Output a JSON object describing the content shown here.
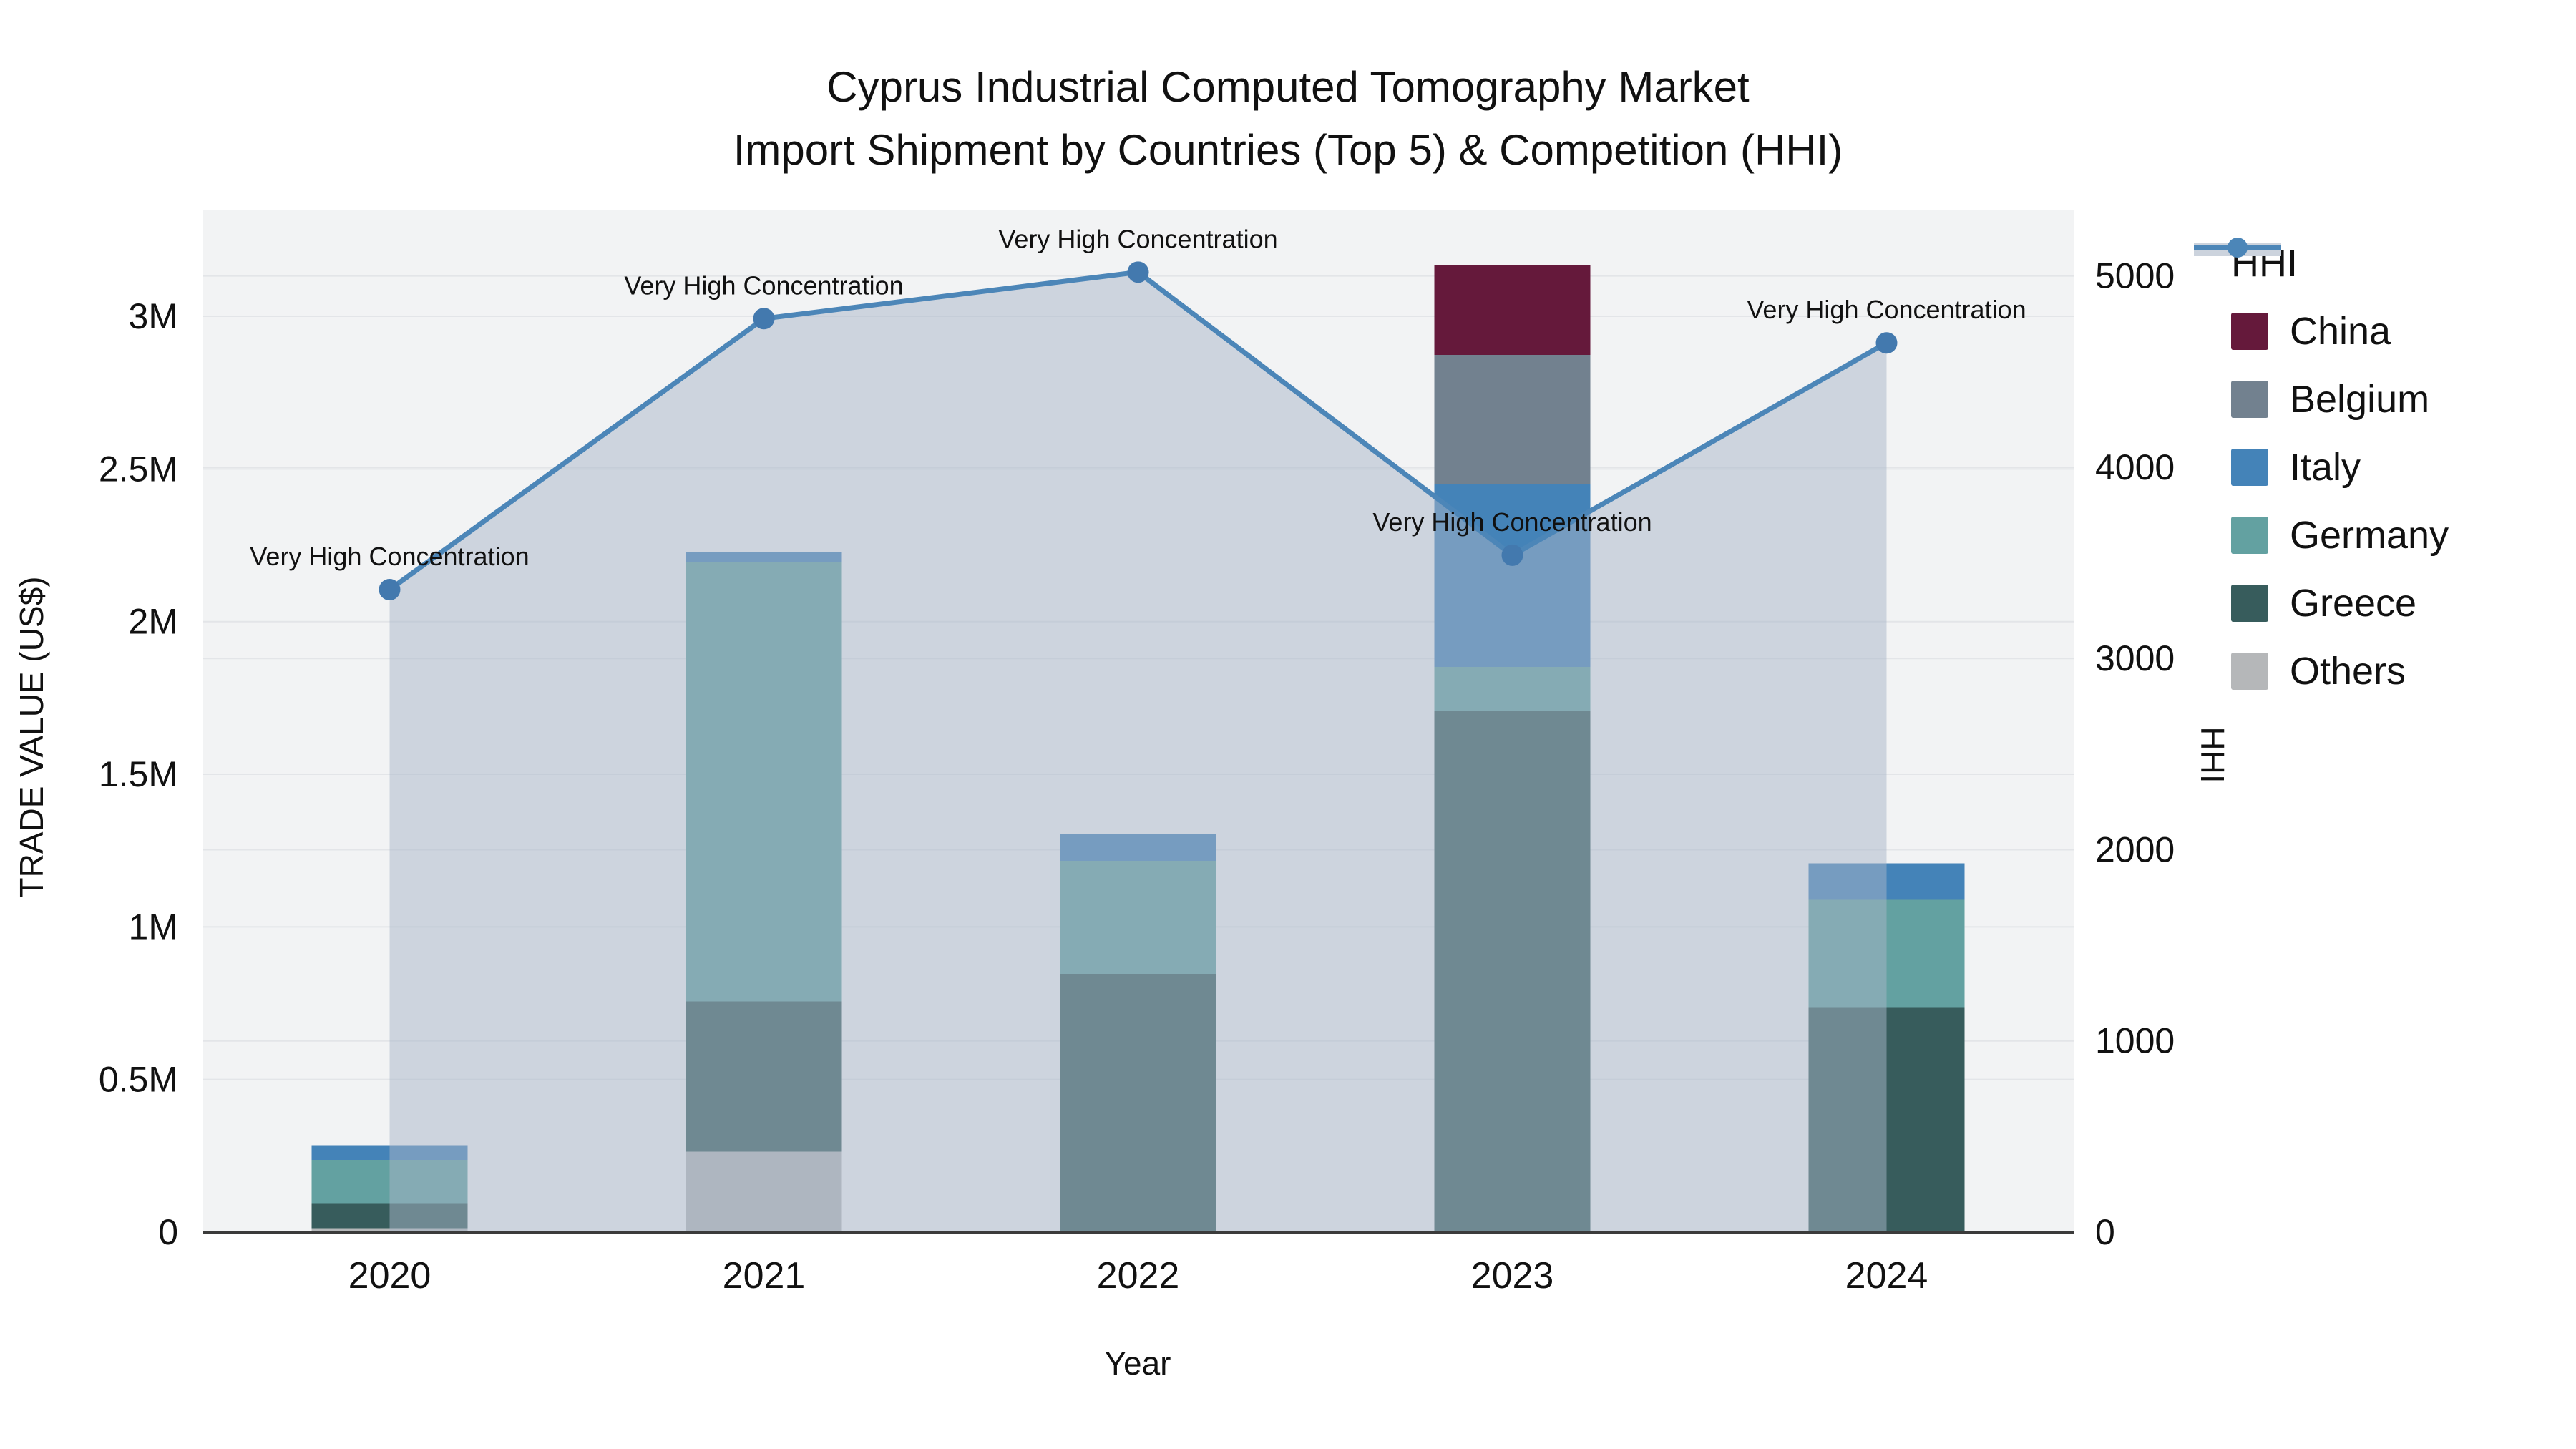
{
  "title": {
    "line1": "Cyprus Industrial Computed Tomography Market",
    "line2": "Import Shipment by Countries (Top 5) & Competition (HHI)"
  },
  "axes": {
    "x_title": "Year",
    "y_title": "TRADE VALUE (US$)",
    "y2_title": "HHI"
  },
  "annotation_label": "Very High Concentration",
  "colors": {
    "plot_background": "#f2f3f4",
    "gridline": "#e3e5e8",
    "axis_line": "#3b3b3b",
    "hhi_line": "#4c86b8",
    "hhi_marker": "#4379ae",
    "hhi_area_fill": "rgba(168,181,199,0.5)",
    "legend_band": "#ccd3dd",
    "china": "#65193b",
    "belgium": "#72818f",
    "italy": "#4483b8",
    "germany": "#63a1a1",
    "greece": "#375c5c",
    "others": "#b5b7b9"
  },
  "legend": {
    "items": [
      {
        "label": "HHI",
        "type": "line",
        "color": "#4c86b8"
      },
      {
        "label": "China",
        "type": "swatch",
        "color": "#65193b"
      },
      {
        "label": "Belgium",
        "type": "swatch",
        "color": "#72818f"
      },
      {
        "label": "Italy",
        "type": "swatch",
        "color": "#4483b8"
      },
      {
        "label": "Germany",
        "type": "swatch",
        "color": "#63a1a1"
      },
      {
        "label": "Greece",
        "type": "swatch",
        "color": "#375c5c"
      },
      {
        "label": "Others",
        "type": "swatch",
        "color": "#b5b7b9"
      }
    ]
  },
  "chart_data": {
    "type": "bar",
    "subtype": "stacked-bars-with-line",
    "title": "Cyprus Industrial Computed Tomography Market — Import Shipment by Countries (Top 5) & Competition (HHI)",
    "xlabel": "Year",
    "ylabel": "TRADE VALUE (US$)",
    "y2label": "HHI",
    "categories": [
      "2020",
      "2021",
      "2022",
      "2023",
      "2024"
    ],
    "series": [
      {
        "name": "Others",
        "color": "#b5b7b9",
        "values": [
          13000,
          264000,
          0,
          0,
          0
        ]
      },
      {
        "name": "Greece",
        "color": "#375c5c",
        "values": [
          82000,
          492000,
          846000,
          1708000,
          737000
        ]
      },
      {
        "name": "Germany",
        "color": "#63a1a1",
        "values": [
          142000,
          1438000,
          371000,
          144000,
          352000
        ]
      },
      {
        "name": "Italy",
        "color": "#4483b8",
        "values": [
          48000,
          34000,
          89000,
          598000,
          119000
        ]
      },
      {
        "name": "Belgium",
        "color": "#72818f",
        "values": [
          0,
          0,
          0,
          424000,
          0
        ]
      },
      {
        "name": "China",
        "color": "#65193b",
        "values": [
          0,
          0,
          0,
          293000,
          0
        ]
      }
    ],
    "bar_totals": [
      285000,
      2228000,
      1306000,
      3167000,
      1208000
    ],
    "line_series": {
      "name": "HHI",
      "values": [
        3360,
        4777,
        5020,
        3540,
        4650
      ],
      "area": true
    },
    "annotations": [
      {
        "x": "2020",
        "text": "Very High Concentration"
      },
      {
        "x": "2021",
        "text": "Very High Concentration"
      },
      {
        "x": "2022",
        "text": "Very High Concentration"
      },
      {
        "x": "2023",
        "text": "Very High Concentration"
      },
      {
        "x": "2024",
        "text": "Very High Concentration"
      }
    ],
    "ylim": [
      0,
      3347000
    ],
    "y2lim": [
      0,
      5343
    ],
    "yticks": {
      "values": [
        0,
        500000,
        1000000,
        1500000,
        2000000,
        2500000,
        3000000
      ],
      "labels": [
        "0",
        "0.5M",
        "1M",
        "1.5M",
        "2M",
        "2.5M",
        "3M"
      ]
    },
    "y2ticks": {
      "values": [
        0,
        1000,
        2000,
        3000,
        4000,
        5000
      ],
      "labels": [
        "0",
        "1000",
        "2000",
        "3000",
        "4000",
        "5000"
      ]
    },
    "grid": true,
    "legend_position": "right"
  }
}
